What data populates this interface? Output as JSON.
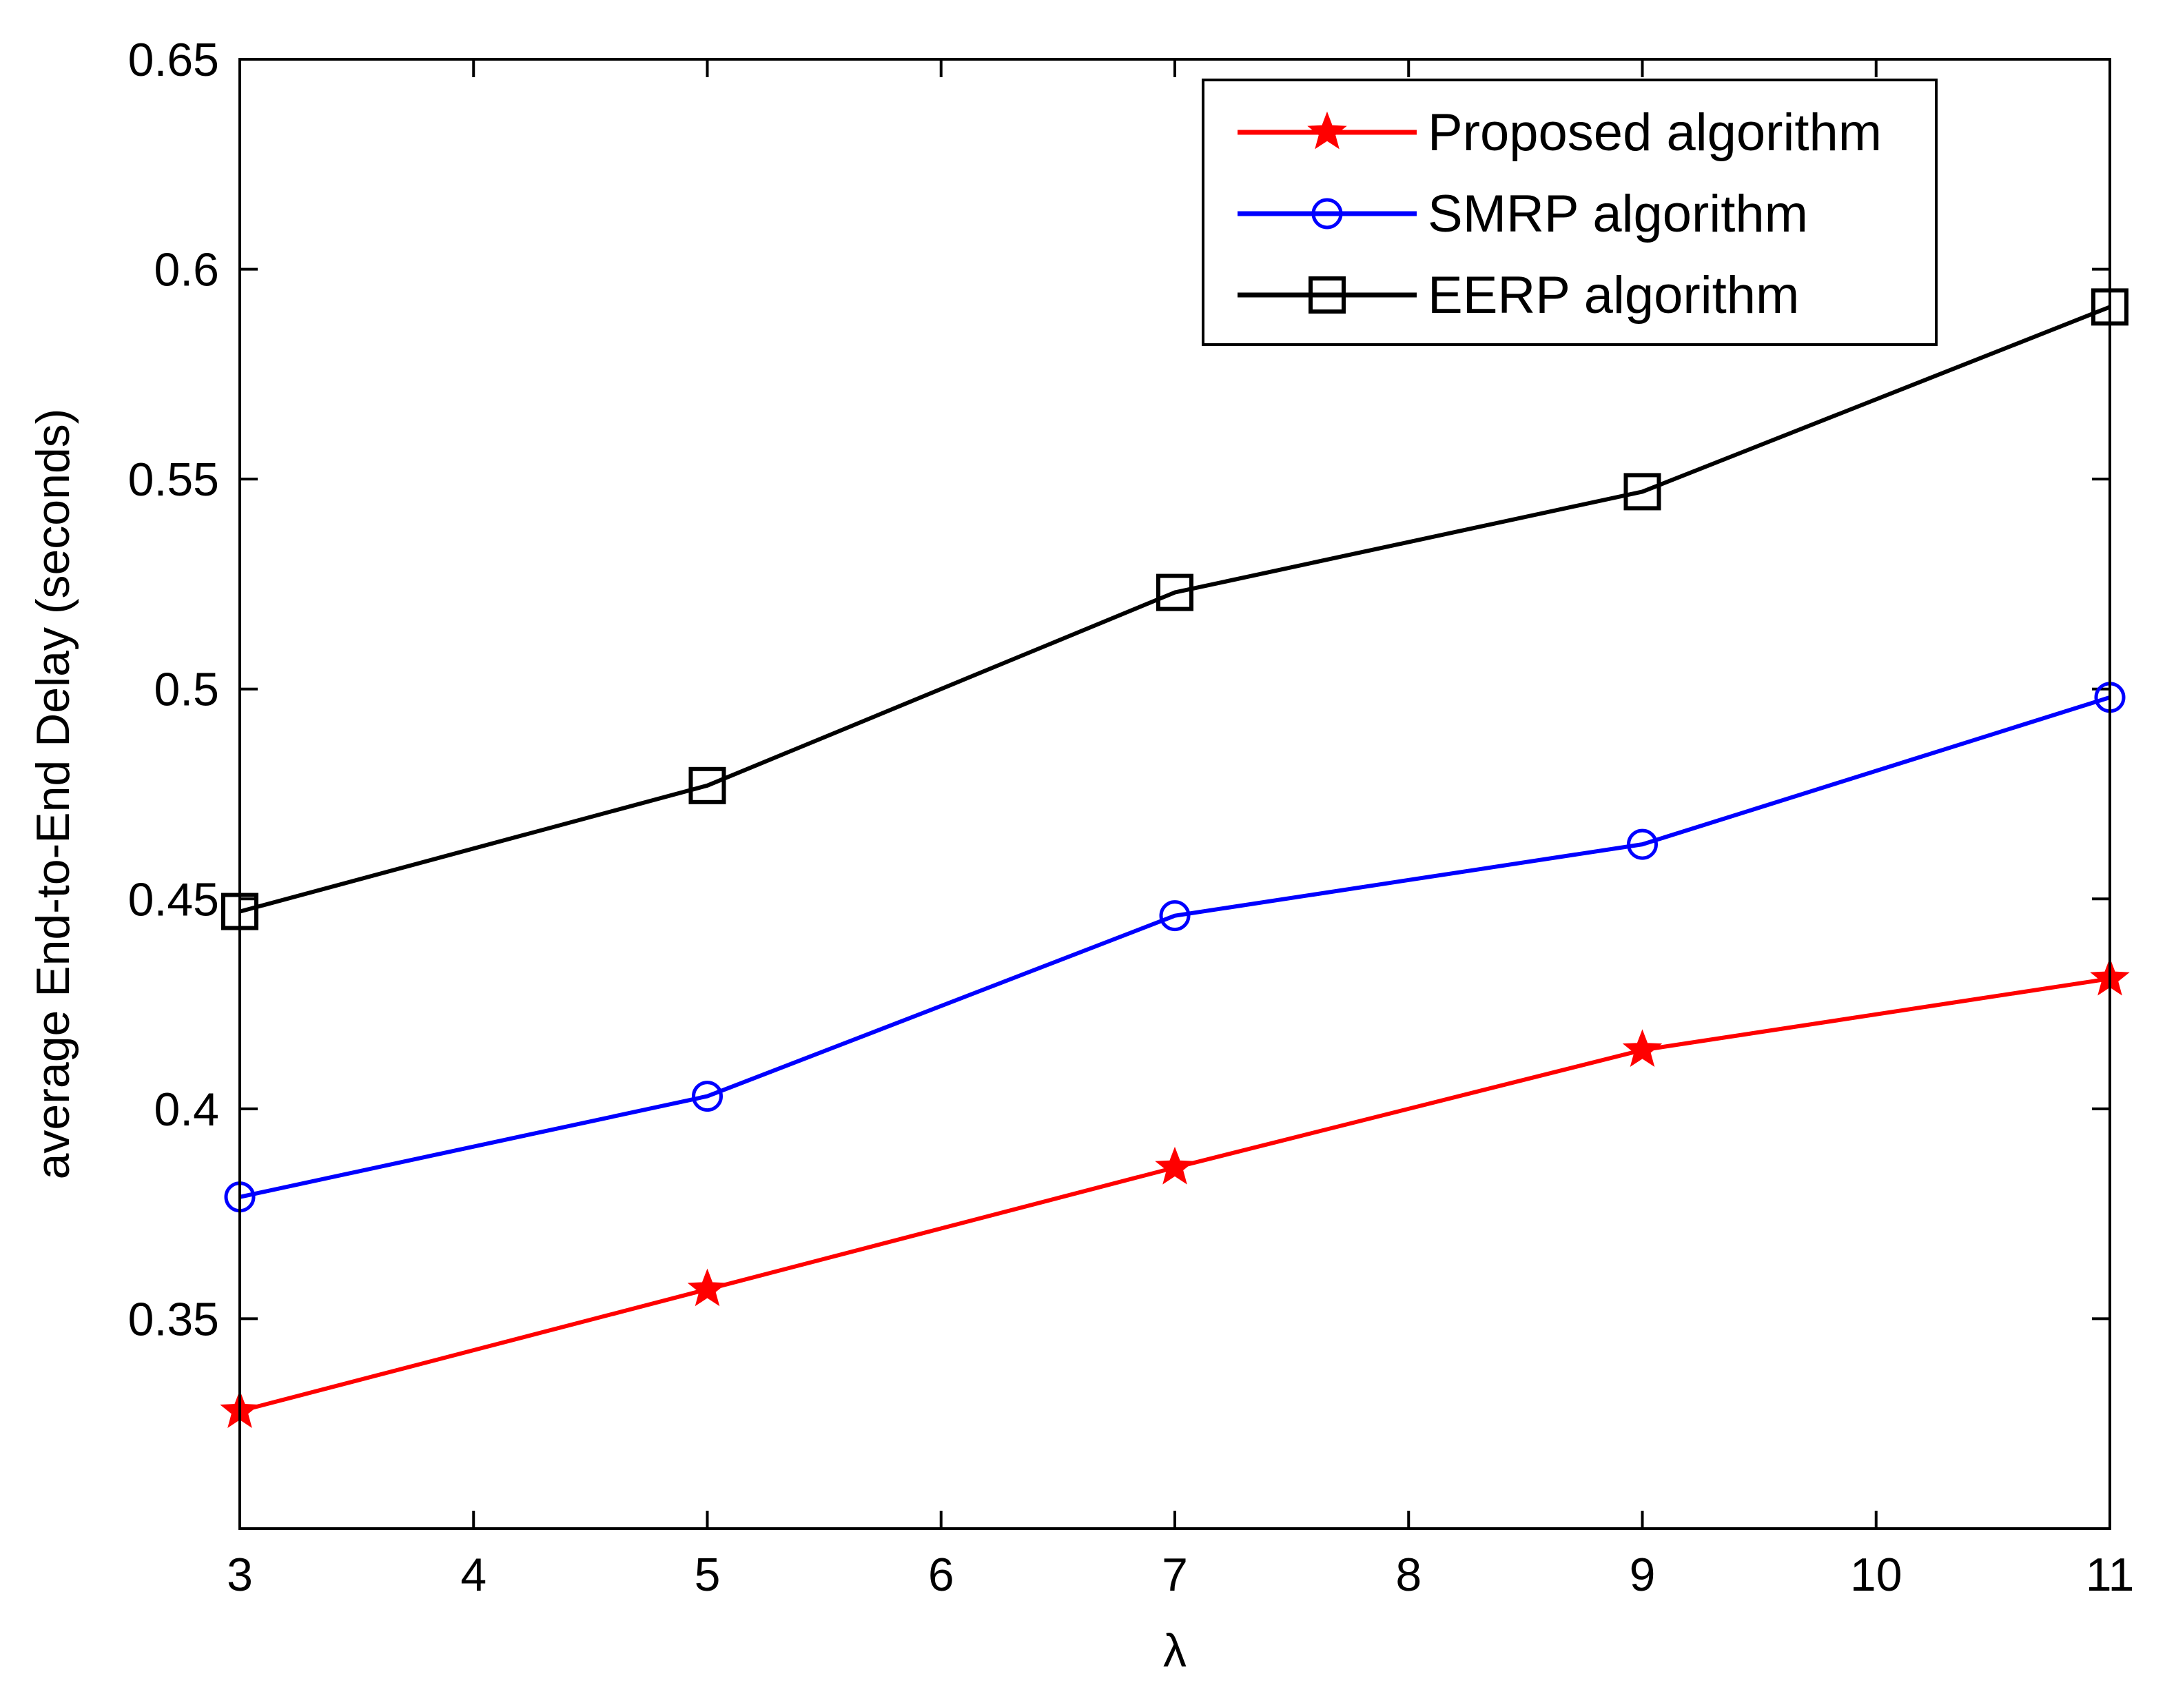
{
  "chart_data": {
    "type": "line",
    "title": "",
    "xlabel": "λ",
    "ylabel": "average End-to-End Delay (seconds)",
    "xlim": [
      3,
      11
    ],
    "ylim": [
      0.3,
      0.65
    ],
    "xticks": [
      3,
      4,
      5,
      6,
      7,
      8,
      9,
      10,
      11
    ],
    "yticks": [
      0.35,
      0.4,
      0.45,
      0.5,
      0.55,
      0.6,
      0.65
    ],
    "ytick_labels": [
      "0.35",
      "0.4",
      "0.45",
      "0.5",
      "0.55",
      "0.6",
      "0.65"
    ],
    "x": [
      3,
      5,
      7,
      9,
      11
    ],
    "series": [
      {
        "name": "Proposed algorithm",
        "color": "#ff0000",
        "marker": "star",
        "values": [
          0.328,
          0.357,
          0.386,
          0.414,
          0.431
        ]
      },
      {
        "name": "SMRP algorithm",
        "color": "#0000ff",
        "marker": "circle",
        "values": [
          0.379,
          0.403,
          0.446,
          0.463,
          0.498
        ]
      },
      {
        "name": "EERP algorithm",
        "color": "#000000",
        "marker": "square",
        "values": [
          0.447,
          0.477,
          0.523,
          0.547,
          0.591
        ]
      }
    ],
    "legend_position": "top-right",
    "grid": false
  }
}
